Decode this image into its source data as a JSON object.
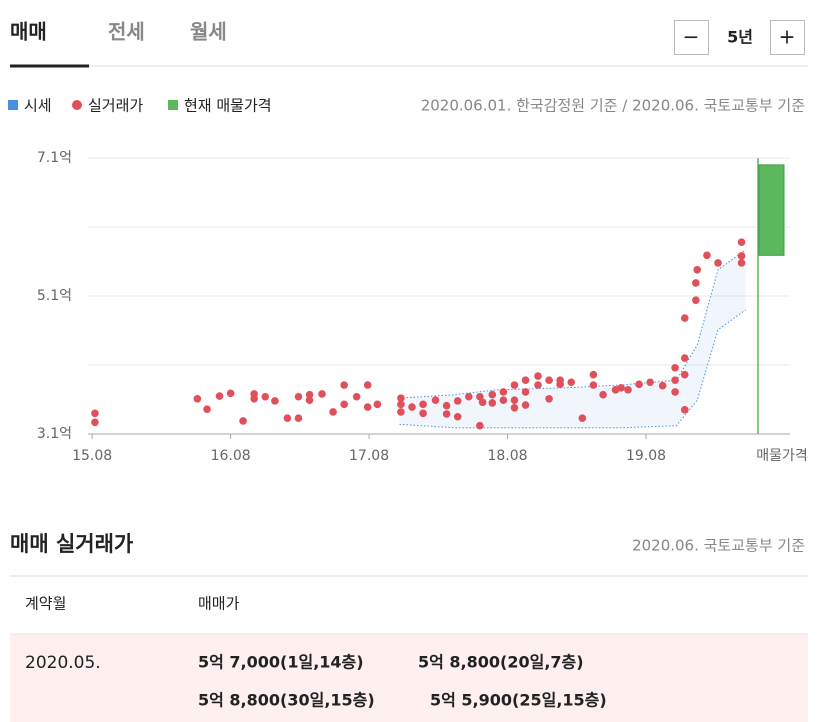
{
  "tabs": [
    "매매",
    "전세",
    "월세"
  ],
  "zoom": {
    "minus": "−",
    "period": "5년",
    "plus": "+"
  },
  "legend_source": "2020.06.01. 한국감정원 기준 / 2020.06. 국토교통부 기준",
  "chart_data": {
    "type": "scatter",
    "xlim": [
      2015.55,
      2020.62
    ],
    "xticks": [
      {
        "value": 2015.58,
        "label": "15.08"
      },
      {
        "value": 2016.58,
        "label": "16.08"
      },
      {
        "value": 2017.58,
        "label": "17.08"
      },
      {
        "value": 2018.58,
        "label": "18.08"
      },
      {
        "value": 2019.58,
        "label": "19.08"
      }
    ],
    "listing_label": "매물가격",
    "ylim": [
      3.1,
      7.1
    ],
    "yticks": [
      {
        "value": 3.1,
        "label": "3.1억"
      },
      {
        "value": 5.1,
        "label": "5.1억"
      },
      {
        "value": 7.1,
        "label": "7.1억"
      }
    ],
    "ygrid": [
      3.1,
      4.1,
      5.1,
      6.1,
      7.1
    ],
    "series": [
      {
        "name": "시세",
        "color": "#4a90e2",
        "x": [
          2017.8,
          2018.2,
          2018.5,
          2019.0,
          2019.4,
          2019.8,
          2019.95,
          2020.1,
          2020.3
        ],
        "high": [
          3.62,
          3.67,
          3.74,
          3.77,
          3.81,
          3.88,
          4.39,
          5.48,
          5.77
        ],
        "low": [
          3.24,
          3.19,
          3.19,
          3.19,
          3.19,
          3.22,
          3.59,
          4.61,
          4.9
        ]
      },
      {
        "name": "실거래가",
        "color": "#e0505a",
        "x": [
          2015.6,
          2015.6,
          2016.34,
          2016.41,
          2016.5,
          2016.58,
          2016.67,
          2016.75,
          2016.75,
          2016.83,
          2016.9,
          2016.99,
          2017.07,
          2017.07,
          2017.15,
          2017.15,
          2017.24,
          2017.32,
          2017.4,
          2017.4,
          2017.49,
          2017.57,
          2017.57,
          2017.64,
          2017.81,
          2017.81,
          2017.81,
          2017.89,
          2017.97,
          2017.97,
          2018.06,
          2018.14,
          2018.14,
          2018.22,
          2018.22,
          2018.3,
          2018.38,
          2018.38,
          2018.4,
          2018.47,
          2018.47,
          2018.55,
          2018.55,
          2018.63,
          2018.63,
          2018.63,
          2018.71,
          2018.71,
          2018.71,
          2018.8,
          2018.8,
          2018.88,
          2018.88,
          2018.96,
          2018.96,
          2019.04,
          2019.12,
          2019.2,
          2019.2,
          2019.27,
          2019.36,
          2019.4,
          2019.45,
          2019.53,
          2019.61,
          2019.7,
          2019.79,
          2019.79,
          2019.79,
          2019.86,
          2019.86,
          2019.86,
          2019.86,
          2019.94,
          2019.94,
          2019.95,
          2020.02,
          2020.1,
          2020.27,
          2020.27,
          2020.27
        ],
        "values": [
          3.4,
          3.27,
          3.61,
          3.46,
          3.65,
          3.69,
          3.29,
          3.68,
          3.61,
          3.64,
          3.58,
          3.33,
          3.33,
          3.64,
          3.67,
          3.59,
          3.68,
          3.42,
          3.81,
          3.53,
          3.64,
          3.81,
          3.49,
          3.53,
          3.62,
          3.53,
          3.42,
          3.49,
          3.53,
          3.4,
          3.59,
          3.51,
          3.39,
          3.35,
          3.58,
          3.64,
          3.64,
          3.22,
          3.56,
          3.67,
          3.55,
          3.59,
          3.71,
          3.81,
          3.59,
          3.48,
          3.88,
          3.71,
          3.52,
          3.94,
          3.81,
          3.88,
          3.61,
          3.82,
          3.88,
          3.85,
          3.33,
          3.96,
          3.81,
          3.67,
          3.74,
          3.77,
          3.74,
          3.82,
          3.85,
          3.8,
          4.06,
          3.88,
          3.71,
          4.2,
          3.96,
          3.45,
          4.78,
          5.29,
          5.04,
          5.48,
          5.69,
          5.58,
          5.88,
          5.68,
          5.58
        ]
      },
      {
        "name": "현재 매물가격",
        "color": "#5cb85c",
        "low": 5.69,
        "high": 7.0
      }
    ]
  },
  "table": {
    "title": "매매 실거래가",
    "source": "2020.06. 국토교통부 기준",
    "headers": [
      "계약월",
      "매매가"
    ],
    "rows": [
      [
        "2020.05.",
        [
          "5억 7,000(1일,14층)",
          "5억 8,800(20일,7층)",
          "5억 8,800(30일,15층)",
          "5억 5,900(25일,15층)"
        ]
      ]
    ]
  }
}
